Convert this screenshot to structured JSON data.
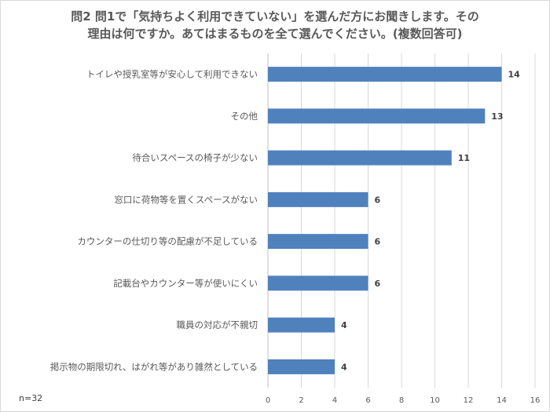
{
  "chart_data": {
    "type": "bar",
    "orientation": "horizontal",
    "title_lines": [
      "問2 問1で「気持ちよく利用できていない」を選んだ方にお聞きします。その",
      "理由は何ですか。あてはまるものを全て選んでください。(複数回答可)"
    ],
    "categories": [
      "トイレや授乳室等が安心して利用できない",
      "その他",
      "待合いスペースの椅子が少ない",
      "窓口に荷物等を置くスペースがない",
      "カウンターの仕切り等の配慮が不足している",
      "記載台やカウンター等が使いにくい",
      "職員の対応が不親切",
      "掲示物の期限切れ、はがれ等があり雑然としている"
    ],
    "values": [
      14,
      13,
      11,
      6,
      6,
      6,
      4,
      4
    ],
    "xlim": [
      0,
      16
    ],
    "xticks": [
      "0",
      "2",
      "4",
      "6",
      "8",
      "10",
      "12",
      "14",
      "16"
    ],
    "gridlines": true,
    "bar_color": "#4f81bd",
    "note": "n=32"
  }
}
